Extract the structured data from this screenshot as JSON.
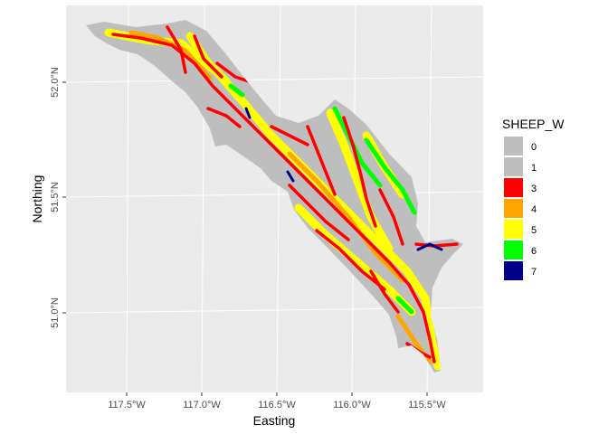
{
  "map": {
    "x_axis": {
      "title": "Easting",
      "ticks": [
        "117.5°W",
        "117.0°W",
        "116.5°W",
        "116.0°W",
        "115.5°W"
      ]
    },
    "y_axis": {
      "title": "Northing",
      "ticks": [
        "52.0°N",
        "51.5°N",
        "51.0°N"
      ]
    },
    "panel_background": "#ebebeb",
    "graticule_color": "#ffffff",
    "legend": {
      "title": "SHEEP_W",
      "position": "right",
      "items": [
        {
          "label": "0",
          "color": "#bebebe"
        },
        {
          "label": "1",
          "color": "#bebebe"
        },
        {
          "label": "3",
          "color": "#ff0000"
        },
        {
          "label": "4",
          "color": "#ffa500"
        },
        {
          "label": "5",
          "color": "#ffff00"
        },
        {
          "label": "6",
          "color": "#00ff00"
        },
        {
          "label": "7",
          "color": "#00008b"
        }
      ]
    }
  }
}
